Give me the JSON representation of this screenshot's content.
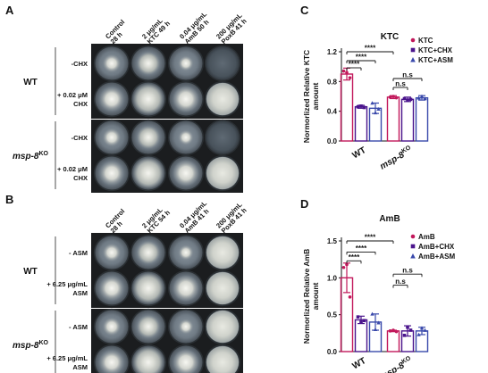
{
  "panels": {
    "A": {
      "letter": "A",
      "columns": [
        [
          "Control",
          "28 h"
        ],
        [
          "2 μg/mL",
          "KTC 49 h"
        ],
        [
          "0.04 μg/mL",
          "AmB 50 h"
        ],
        [
          "200 μg/mL",
          "PoxB 41 h"
        ]
      ],
      "groups": [
        {
          "label": "WT",
          "label_sup": "",
          "rows": [
            [
              "-CHX"
            ],
            [
              "+ 0.02 μM",
              "CHX"
            ]
          ]
        },
        {
          "label": "msp-8",
          "label_sup": "KO",
          "rows": [
            [
              "-CHX"
            ],
            [
              "+ 0.02 μM",
              "CHX"
            ]
          ]
        }
      ]
    },
    "B": {
      "letter": "B",
      "columns": [
        [
          "Control",
          "28 h"
        ],
        [
          "2 μg/mL",
          "KTC 54 h"
        ],
        [
          "0.04 μg/mL",
          "AmB 41 h"
        ],
        [
          "200 μg/mL",
          "PoxB 41 h"
        ]
      ],
      "groups": [
        {
          "label": "WT",
          "label_sup": "",
          "rows": [
            [
              "- ASM"
            ],
            [
              "+ 6.25 μg/mL",
              "ASM"
            ]
          ]
        },
        {
          "label": "msp-8",
          "label_sup": "KO",
          "rows": [
            [
              "- ASM"
            ],
            [
              "+ 6.25 μg/mL",
              "ASM"
            ]
          ]
        }
      ]
    }
  },
  "chart_data": [
    {
      "panel": "C",
      "type": "bar",
      "title": "KTC",
      "ylabel": "Normorlized Relative KTC amount",
      "ylim": [
        0,
        1.2
      ],
      "yticks": [
        0.0,
        0.4,
        0.8,
        1.2
      ],
      "categories": [
        {
          "label": "WT",
          "sup": ""
        },
        {
          "label": "msp-8",
          "sup": "KO"
        }
      ],
      "series": [
        {
          "name": "KTC",
          "color": "#c2185b",
          "marker": "circle",
          "values": [
            0.9,
            0.59
          ],
          "errors": [
            0.08,
            0.02
          ],
          "points": [
            [
              0.94,
              0.92,
              0.85
            ],
            [
              0.59,
              0.6,
              0.58
            ]
          ]
        },
        {
          "name": "KTC+CHX",
          "color": "#4a148c",
          "marker": "square",
          "values": [
            0.46,
            0.56
          ],
          "errors": [
            0.02,
            0.03
          ],
          "points": [
            [
              0.46,
              0.47,
              0.45
            ],
            [
              0.57,
              0.55,
              0.56
            ]
          ]
        },
        {
          "name": "KTC+ASM",
          "color": "#3949ab",
          "marker": "triangle",
          "values": [
            0.44,
            0.58
          ],
          "errors": [
            0.07,
            0.03
          ],
          "points": [
            [
              0.51,
              0.38,
              0.43
            ],
            [
              0.58,
              0.6,
              0.57
            ]
          ]
        }
      ],
      "legend_position": "top-right",
      "significance": [
        {
          "label": "****",
          "from": [
            0,
            0
          ],
          "to": [
            0,
            1
          ]
        },
        {
          "label": "****",
          "from": [
            0,
            0
          ],
          "to": [
            0,
            2
          ]
        },
        {
          "label": "****",
          "from": [
            0,
            0
          ],
          "to": [
            1,
            0
          ]
        },
        {
          "label": "n.s",
          "from": [
            1,
            0
          ],
          "to": [
            1,
            1
          ]
        },
        {
          "label": "n.s",
          "from": [
            1,
            0
          ],
          "to": [
            1,
            2
          ]
        }
      ]
    },
    {
      "panel": "D",
      "type": "bar",
      "title": "AmB",
      "ylabel": "Normorlized Relative AmB amount",
      "ylim": [
        0,
        1.5
      ],
      "yticks": [
        0.0,
        0.5,
        1.0,
        1.5
      ],
      "categories": [
        {
          "label": "WT",
          "sup": ""
        },
        {
          "label": "msp-8",
          "sup": "KO"
        }
      ],
      "series": [
        {
          "name": "AmB",
          "color": "#c2185b",
          "marker": "circle",
          "values": [
            1.0,
            0.28
          ],
          "errors": [
            0.2,
            0.01
          ],
          "points": [
            [
              1.14,
              1.18,
              0.74
            ],
            [
              0.28,
              0.29,
              0.27
            ]
          ]
        },
        {
          "name": "AmB+CHX",
          "color": "#4a148c",
          "marker": "square",
          "values": [
            0.43,
            0.28
          ],
          "errors": [
            0.05,
            0.07
          ],
          "points": [
            [
              0.47,
              0.4,
              0.42
            ],
            [
              0.22,
              0.33,
              0.29
            ]
          ]
        },
        {
          "name": "AmB+ASM",
          "color": "#3949ab",
          "marker": "triangle",
          "values": [
            0.4,
            0.28
          ],
          "errors": [
            0.11,
            0.05
          ],
          "points": [
            [
              0.51,
              0.3,
              0.39
            ],
            [
              0.23,
              0.32,
              0.29
            ]
          ]
        }
      ],
      "legend_position": "top-right",
      "significance": [
        {
          "label": "****",
          "from": [
            0,
            0
          ],
          "to": [
            0,
            1
          ]
        },
        {
          "label": "****",
          "from": [
            0,
            0
          ],
          "to": [
            0,
            2
          ]
        },
        {
          "label": "****",
          "from": [
            0,
            0
          ],
          "to": [
            1,
            0
          ]
        },
        {
          "label": "n.s",
          "from": [
            1,
            0
          ],
          "to": [
            1,
            1
          ]
        },
        {
          "label": "n.s",
          "from": [
            1,
            0
          ],
          "to": [
            1,
            2
          ]
        }
      ]
    }
  ]
}
